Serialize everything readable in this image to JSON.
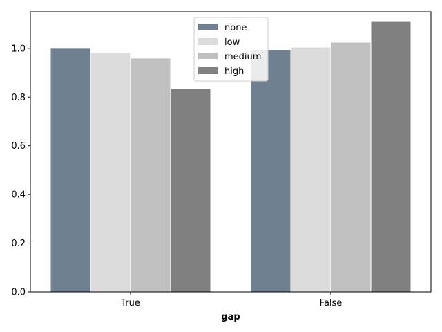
{
  "chart_data": {
    "type": "bar",
    "xlabel": "gap",
    "ylabel": "",
    "categories": [
      "True",
      "False"
    ],
    "series": [
      {
        "name": "none",
        "color": "#708090",
        "values": [
          1.0,
          0.995
        ]
      },
      {
        "name": "low",
        "color": "#dcdcdc",
        "values": [
          0.983,
          1.005
        ]
      },
      {
        "name": "medium",
        "color": "#c0c0c0",
        "values": [
          0.96,
          1.025
        ]
      },
      {
        "name": "high",
        "color": "#808080",
        "values": [
          0.835,
          1.11
        ]
      }
    ],
    "ylim": [
      0,
      1.15
    ],
    "yticks": [
      "0.0",
      "0.2",
      "0.4",
      "0.6",
      "0.8",
      "1.0"
    ],
    "grid": false,
    "legend_position": "top-center"
  }
}
